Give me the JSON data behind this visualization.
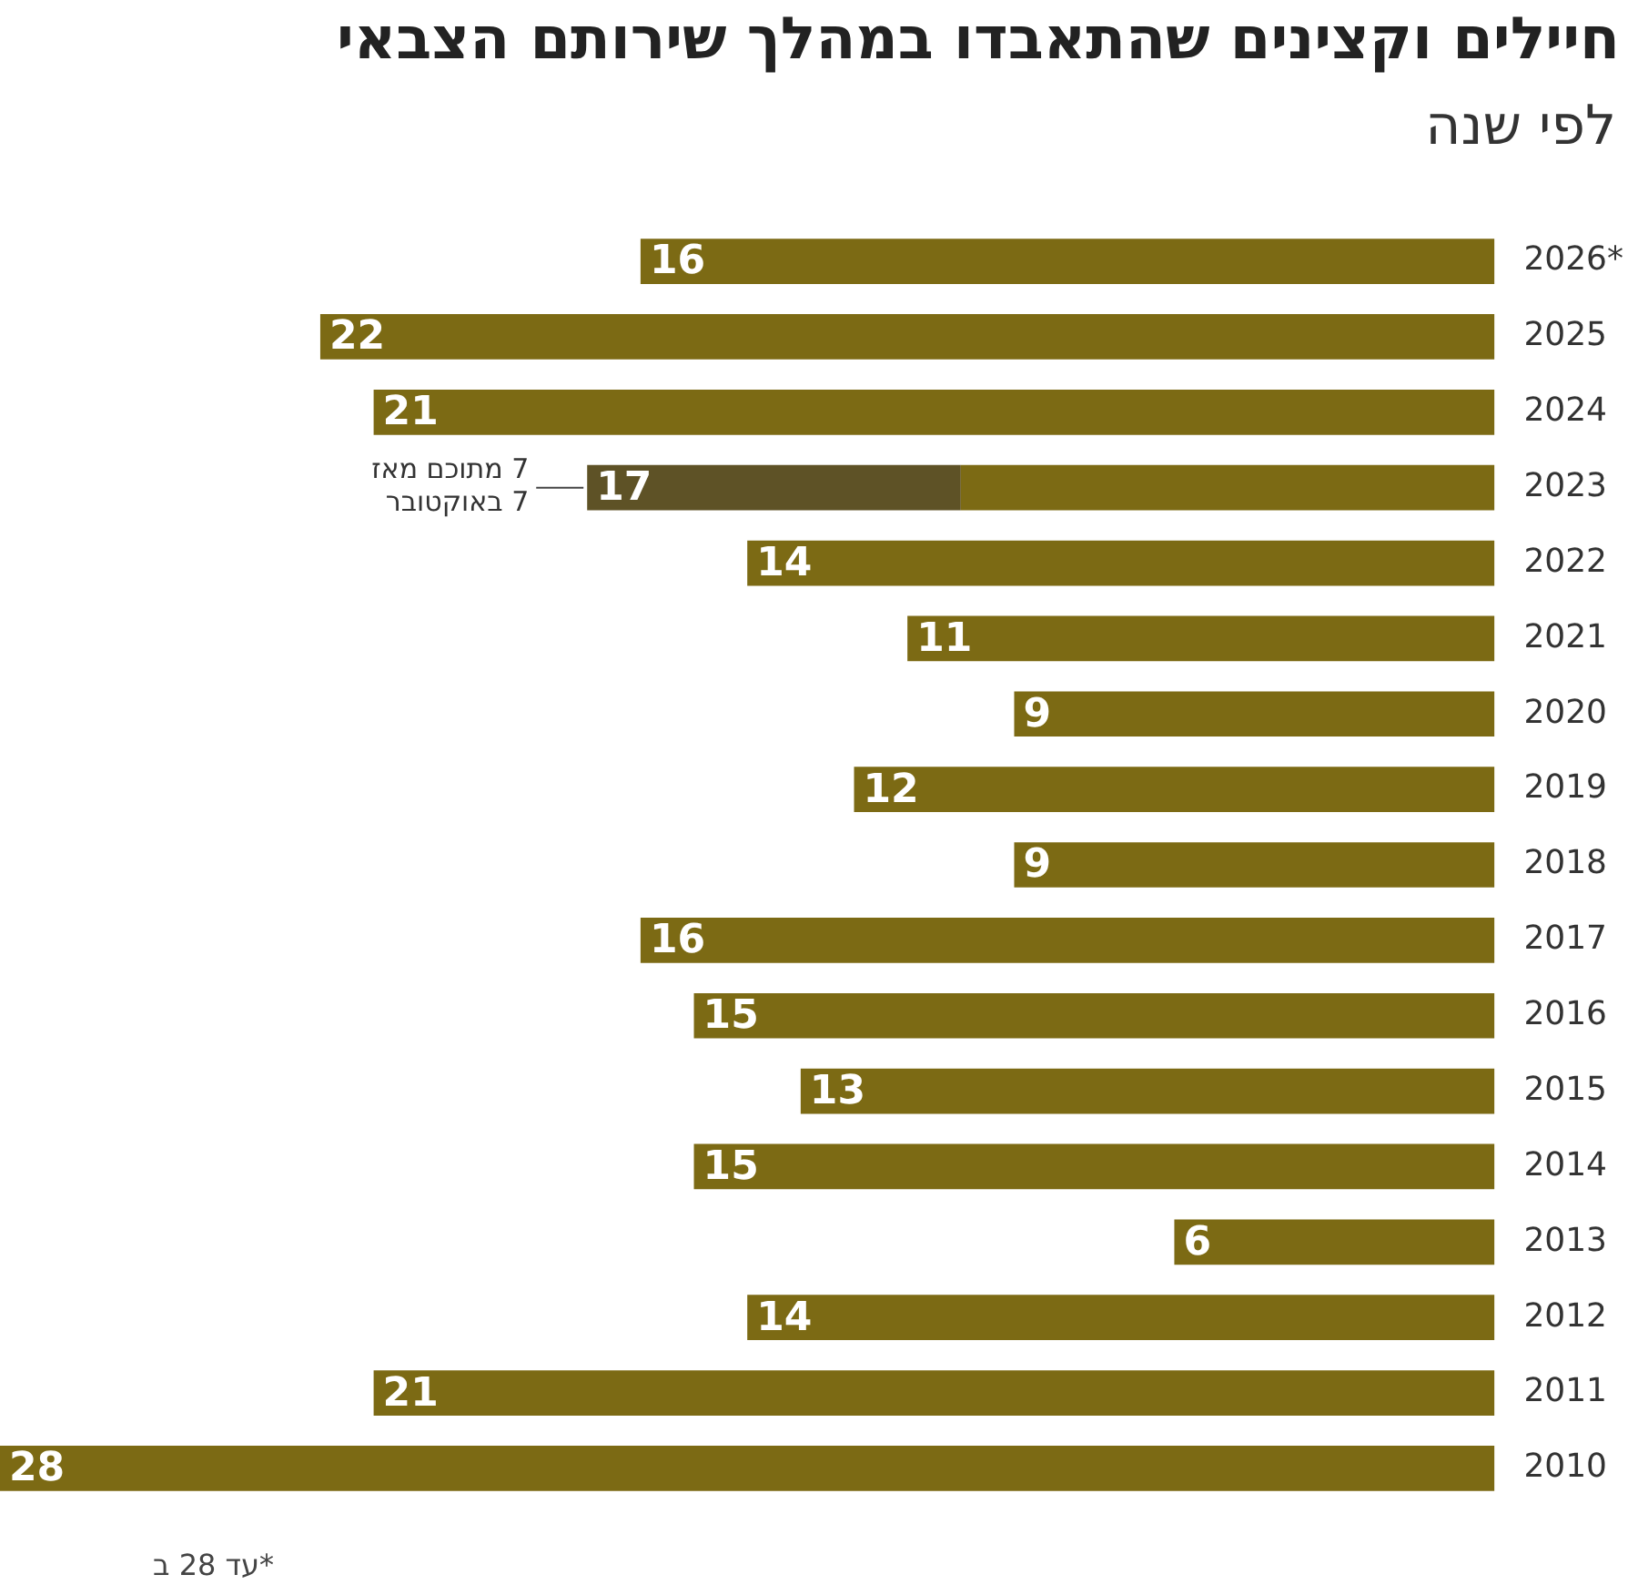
{
  "chart_data": {
    "type": "bar",
    "orientation": "horizontal",
    "stacked": true,
    "title": "חיילים וקצינים שהתאבדו במהלך שירותם הצבאי",
    "subtitle": "לפי שנה",
    "categories": [
      "2026*",
      "2025",
      "2024",
      "2023",
      "2022",
      "2021",
      "2020",
      "2019",
      "2018",
      "2017",
      "2016",
      "2015",
      "2014",
      "2013",
      "2012",
      "2011",
      "2010"
    ],
    "series": [
      {
        "color": "#7c6a14",
        "values": [
          16,
          22,
          21,
          10,
          14,
          11,
          9,
          12,
          9,
          16,
          15,
          13,
          15,
          6,
          14,
          21,
          28
        ],
        "value_labels": [
          "16",
          "22",
          "21",
          null,
          "14",
          "11",
          "9",
          "12",
          "9",
          "16",
          "15",
          "13",
          "15",
          "6",
          "14",
          "21",
          "28"
        ]
      },
      {
        "color": "#5e5226",
        "values": [
          null,
          null,
          null,
          7,
          null,
          null,
          null,
          null,
          null,
          null,
          null,
          null,
          null,
          null,
          null,
          null,
          null
        ]
      }
    ],
    "totals": [
      null,
      null,
      null,
      "17",
      null,
      null,
      null,
      null,
      null,
      null,
      null,
      null,
      null,
      null,
      null,
      null,
      null
    ],
    "tick_labels": "y",
    "annotations": [
      {
        "text": "7 מתוכם מאז\n7 באוקטובר",
        "x": 17,
        "y": "2023"
      },
      "*עד 28 ב"
    ]
  }
}
